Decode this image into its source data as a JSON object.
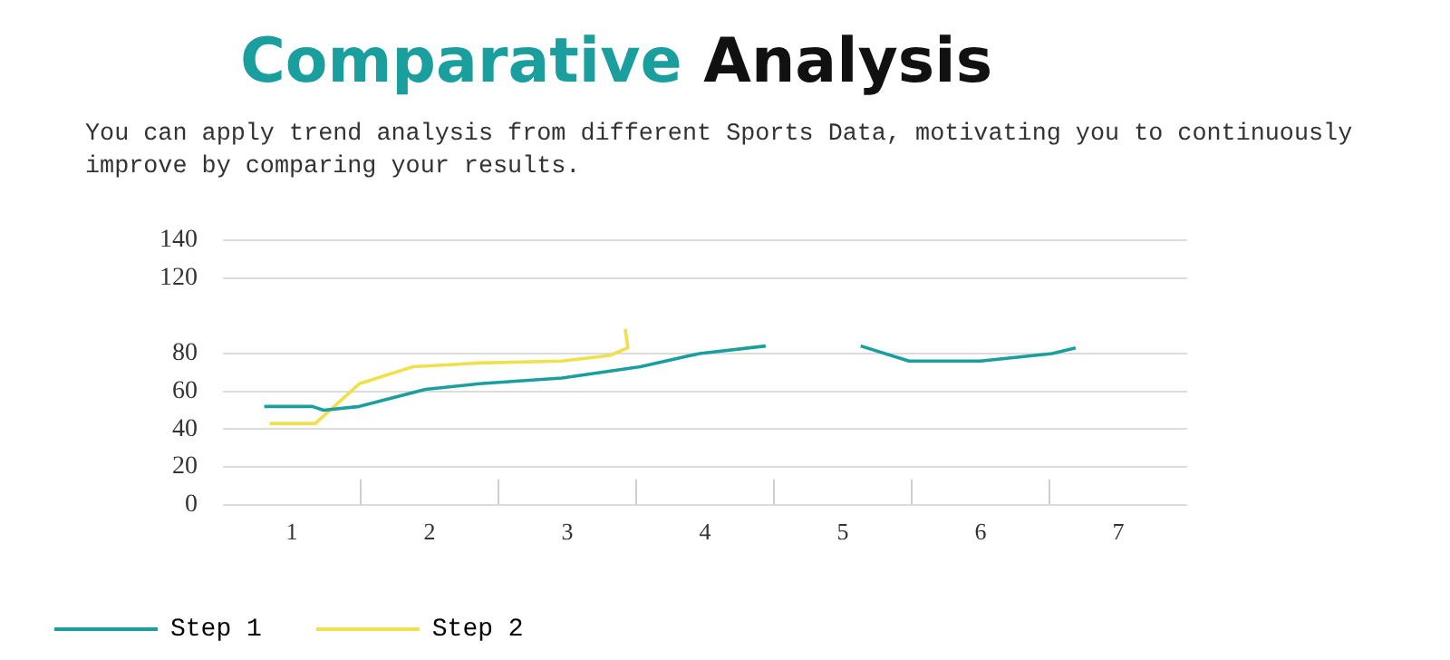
{
  "chart_data": {
    "type": "line",
    "title": "Comparative Analysis",
    "subtitle": "You can apply trend analysis from different Sports Data, motivating you to continuously improve by comparing your results.",
    "xlim": [
      0.5,
      7.5
    ],
    "xticks": [
      1,
      {
        "value": 1.5,
        "label": null
      },
      2,
      {
        "value": 2.5,
        "label": null
      },
      3,
      {
        "value": 3.5,
        "label": null
      },
      4,
      {
        "value": 4.5,
        "label": null
      },
      5,
      {
        "value": 5.5,
        "label": null
      },
      6,
      {
        "value": 6.5,
        "label": null
      },
      7
    ],
    "ylim": [
      0,
      140
    ],
    "yticks": [
      0,
      20,
      40,
      60,
      80,
      120,
      140
    ],
    "grid": "y",
    "legend": "bottom left",
    "marker": "none",
    "line_style": "solid",
    "series": [
      {
        "name": "Step 1",
        "color": "#1a9e9e",
        "x": [
          0.8,
          1.15,
          1.23,
          1.49,
          1.97,
          2.36,
          2.96,
          3.53,
          3.96,
          4.44,
          4.8,
          5.13,
          5.48,
          6.0,
          6.52,
          6.69
        ],
        "values": [
          52,
          52,
          50,
          52,
          61,
          64,
          67,
          73,
          80,
          84,
          null,
          84,
          76,
          76,
          80,
          83
        ]
      },
      {
        "name": "Step 2",
        "color": "#efe04c",
        "x": [
          0.84,
          1.17,
          1.49,
          1.88,
          2.36,
          2.96,
          3.31,
          3.44,
          3.42
        ],
        "values": [
          43,
          43,
          64,
          73,
          75,
          76,
          79,
          83,
          93
        ]
      }
    ]
  }
}
